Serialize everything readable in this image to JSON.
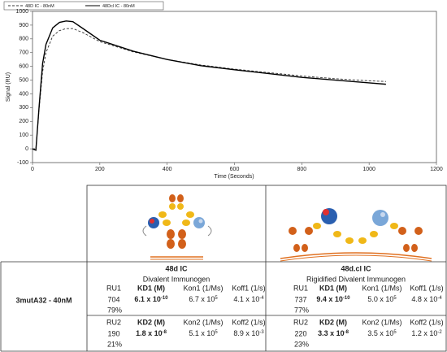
{
  "chart_data": {
    "type": "line",
    "xlabel": "Time (Seconds)",
    "ylabel": "Signal (RU)",
    "x": [
      0,
      10,
      20,
      30,
      40,
      60,
      80,
      100,
      120,
      150,
      200,
      300,
      400,
      500,
      600,
      700,
      800,
      900,
      1000,
      1050
    ],
    "series": [
      {
        "name": "48D IC - 80nM",
        "color": "#333333",
        "style": "dashed",
        "values": [
          0,
          0,
          300,
          560,
          700,
          820,
          860,
          875,
          875,
          845,
          780,
          705,
          650,
          610,
          580,
          555,
          530,
          510,
          495,
          490
        ]
      },
      {
        "name": "48Dcl IC - 80nM",
        "color": "#000000",
        "style": "solid",
        "values": [
          0,
          -10,
          320,
          620,
          760,
          880,
          920,
          930,
          925,
          875,
          790,
          710,
          650,
          605,
          575,
          548,
          520,
          500,
          480,
          470
        ]
      }
    ],
    "xlim": [
      0,
      1200
    ],
    "xticks": [
      0,
      200,
      400,
      600,
      800,
      1000,
      1200
    ],
    "ylim": [
      -100,
      1000
    ],
    "yticks": [
      -100,
      0,
      100,
      200,
      300,
      400,
      500,
      600,
      700,
      800,
      900,
      1000
    ],
    "grid": false,
    "legend": "top-left"
  },
  "table": {
    "row_label": "3mutA32 - 40nM",
    "columns": [
      {
        "title": "48d IC",
        "subtitle": "Divalent Immunogen",
        "blocks": [
          {
            "headers": [
              "RU1",
              "KD1 (M)",
              "Kon1 (1/Ms)",
              "Koff1 (1/s)"
            ],
            "values": [
              "704",
              {
                "base": "6.1 x 10",
                "exp": "-10"
              },
              {
                "base": "6.7 x 10",
                "exp": "5"
              },
              {
                "base": "4.1 x 10",
                "exp": "-4"
              }
            ],
            "percent": "79%"
          },
          {
            "headers": [
              "RU2",
              "KD2 (M)",
              "Kon2 (1/Ms)",
              "Koff2 (1/s)"
            ],
            "values": [
              "190",
              {
                "base": "1.8 x 10",
                "exp": "-8"
              },
              {
                "base": "5.1 x 10",
                "exp": "5"
              },
              {
                "base": "8.9 x 10",
                "exp": "-3"
              }
            ],
            "percent": "21%"
          }
        ]
      },
      {
        "title": "48d.cl IC",
        "subtitle": "Rigidified Divalent Immunogen",
        "blocks": [
          {
            "headers": [
              "RU1",
              "KD1 (M)",
              "Kon1 (1/Ms)",
              "Koff1 (1/s)"
            ],
            "values": [
              "737",
              {
                "base": "9.4 x 10",
                "exp": "-10"
              },
              {
                "base": "5.0 x 10",
                "exp": "5"
              },
              {
                "base": "4.8 x 10",
                "exp": "-4"
              }
            ],
            "percent": "77%"
          },
          {
            "headers": [
              "RU2",
              "KD2 (M)",
              "Kon2 (1/Ms)",
              "Koff2 (1/s)"
            ],
            "values": [
              "220",
              {
                "base": "3.3 x 10",
                "exp": "-8"
              },
              {
                "base": "3.5 x 10",
                "exp": "5"
              },
              {
                "base": "1.2 x 10",
                "exp": "-2"
              }
            ],
            "percent": "23%"
          }
        ]
      }
    ]
  }
}
